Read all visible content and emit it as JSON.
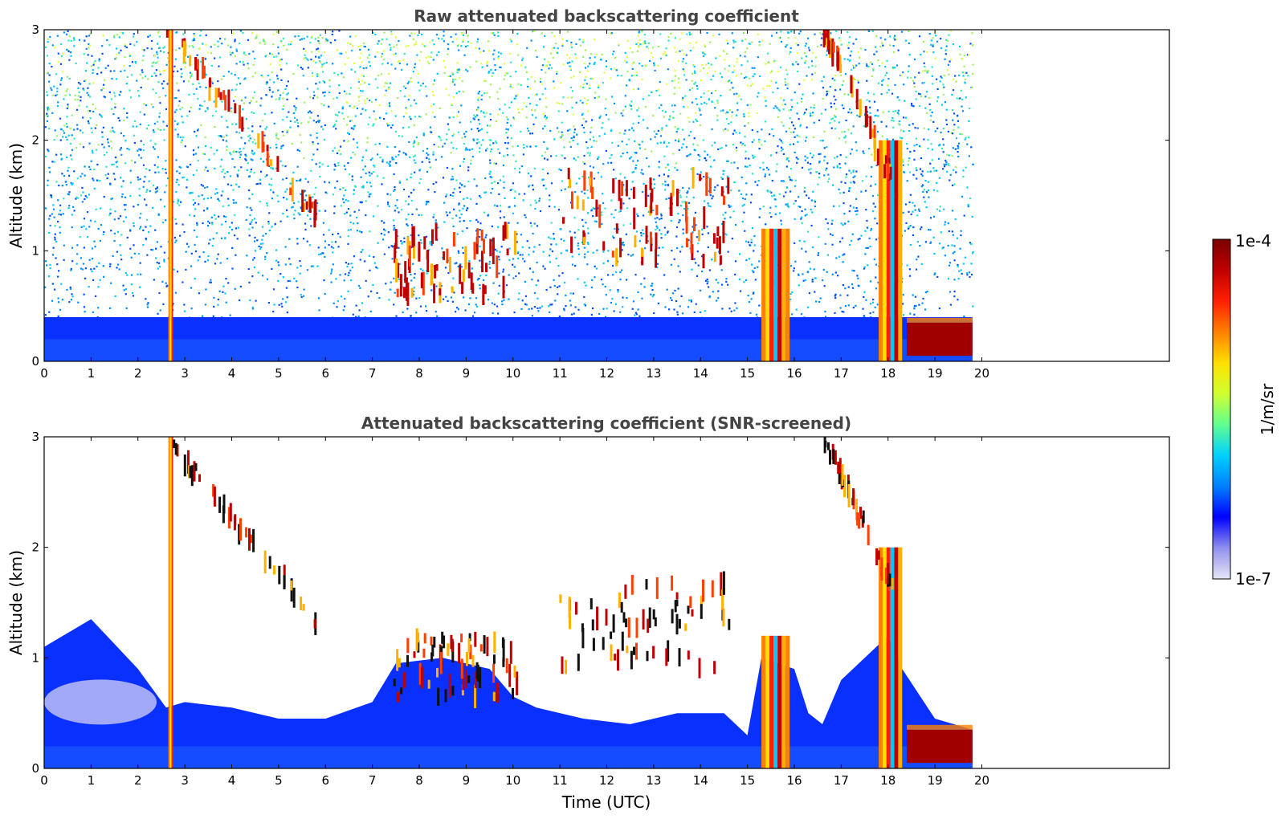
{
  "chart_data": [
    {
      "type": "heatmap",
      "title": "Raw attenuated backscattering coefficient",
      "xlabel": "",
      "ylabel": "Altitude (km)",
      "xlim": [
        0,
        24
      ],
      "ylim": [
        0,
        3
      ],
      "x_ticks": [
        "0",
        "1",
        "2",
        "3",
        "4",
        "5",
        "6",
        "7",
        "8",
        "9",
        "10",
        "11",
        "12",
        "13",
        "14",
        "15",
        "16",
        "17",
        "18",
        "19",
        "20"
      ],
      "y_ticks": [
        "0",
        "1",
        "2",
        "3"
      ],
      "data_extent_x": [
        0,
        19.8
      ],
      "features": [
        {
          "kind": "boundary-layer",
          "x_range": [
            0,
            19.8
          ],
          "altitude_top": 0.4
        },
        {
          "kind": "dense-column",
          "x_range": [
            2.65,
            2.75
          ],
          "altitude_range": [
            0,
            3.0
          ]
        },
        {
          "kind": "dense-column",
          "x_range": [
            15.3,
            15.9
          ],
          "altitude_range": [
            0,
            1.2
          ]
        },
        {
          "kind": "dense-column",
          "x_range": [
            17.8,
            18.3
          ],
          "altitude_range": [
            0,
            2.0
          ]
        },
        {
          "kind": "low-dense-layer",
          "x_range": [
            18.4,
            19.8
          ],
          "altitude_range": [
            0.05,
            0.35
          ]
        },
        {
          "kind": "cirrus-streaks",
          "x_range": [
            2.6,
            5.8
          ],
          "altitude_range": [
            1.3,
            3.0
          ]
        },
        {
          "kind": "cloud-layer",
          "x_range": [
            7.4,
            10.1
          ],
          "altitude_range": [
            0.6,
            1.2
          ]
        },
        {
          "kind": "cloud-layer",
          "x_range": [
            10.9,
            14.6
          ],
          "altitude_range": [
            0.9,
            1.7
          ]
        },
        {
          "kind": "cirrus-streaks",
          "x_range": [
            16.6,
            18.1
          ],
          "altitude_range": [
            1.6,
            3.0
          ]
        }
      ]
    },
    {
      "type": "heatmap",
      "title": "Attenuated backscattering coefficient (SNR-screened)",
      "xlabel": "Time (UTC)",
      "ylabel": "Altitude (km)",
      "xlim": [
        0,
        24
      ],
      "ylim": [
        0,
        3
      ],
      "x_ticks": [
        "0",
        "1",
        "2",
        "3",
        "4",
        "5",
        "6",
        "7",
        "8",
        "9",
        "10",
        "11",
        "12",
        "13",
        "14",
        "15",
        "16",
        "17",
        "18",
        "19",
        "20"
      ],
      "y_ticks": [
        "0",
        "1",
        "2",
        "3"
      ],
      "data_extent_x": [
        0,
        19.8
      ],
      "boundary_layer_top": [
        [
          0,
          1.1
        ],
        [
          1.0,
          1.35
        ],
        [
          2.0,
          0.9
        ],
        [
          2.6,
          0.55
        ],
        [
          3.0,
          0.6
        ],
        [
          4.0,
          0.55
        ],
        [
          5.0,
          0.45
        ],
        [
          6.0,
          0.45
        ],
        [
          7.0,
          0.6
        ],
        [
          7.5,
          0.95
        ],
        [
          8.5,
          1.0
        ],
        [
          9.5,
          0.9
        ],
        [
          10.0,
          0.65
        ],
        [
          10.5,
          0.55
        ],
        [
          11.5,
          0.45
        ],
        [
          12.5,
          0.4
        ],
        [
          13.5,
          0.5
        ],
        [
          14.5,
          0.5
        ],
        [
          15.0,
          0.3
        ],
        [
          15.3,
          1.0
        ],
        [
          16.0,
          0.9
        ],
        [
          16.3,
          0.5
        ],
        [
          16.6,
          0.4
        ],
        [
          17.0,
          0.8
        ],
        [
          18.0,
          1.2
        ],
        [
          18.3,
          0.9
        ],
        [
          19.0,
          0.45
        ],
        [
          19.8,
          0.35
        ]
      ]
    }
  ],
  "colorbar": {
    "label": "1/m/sr",
    "max_label": "1e-4",
    "min_label": "1e-7",
    "scale": "log",
    "colormap": [
      "#e6e6f5",
      "#9090ee",
      "#0000ff",
      "#0080ff",
      "#00d0ff",
      "#60ff90",
      "#d0ff30",
      "#ffe000",
      "#ff8000",
      "#ff2000",
      "#c00000",
      "#7a0000"
    ]
  }
}
